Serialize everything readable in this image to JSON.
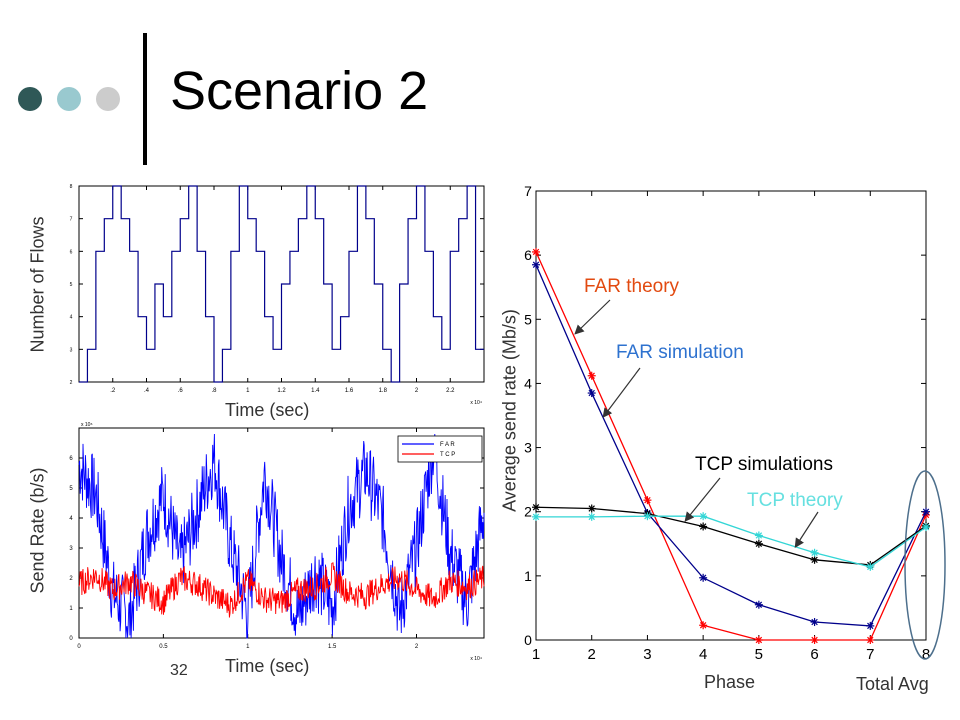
{
  "slide": {
    "title": "Scenario 2",
    "number": "32",
    "bullet_colors": [
      "#2f5857",
      "#99c9cf",
      "#cccccc"
    ]
  },
  "chart_data": [
    {
      "type": "line",
      "name": "flows",
      "xlabel": "Time (sec)",
      "ylabel": "Number of Flows",
      "x_multiplier": "x 10⁴",
      "xlim": [
        0,
        2.4
      ],
      "ylim": [
        2,
        8
      ],
      "xticks": [
        ".2",
        ".4",
        ".6",
        ".8",
        "1",
        "1.2",
        "1.4",
        "1.6",
        "1.8",
        "2",
        "2.2"
      ],
      "yticks": [
        "2",
        "3",
        "4",
        "5",
        "6",
        "7",
        "8"
      ],
      "step": true,
      "color": "#00008b",
      "series": [
        {
          "x": [
            0,
            0.05,
            0.1,
            0.15,
            0.2,
            0.25,
            0.3,
            0.35,
            0.4,
            0.45,
            0.5,
            0.55,
            0.6,
            0.65,
            0.7,
            0.75,
            0.8,
            0.85,
            0.9,
            0.95,
            1.0,
            1.05,
            1.1,
            1.15,
            1.2,
            1.25,
            1.3,
            1.35,
            1.4,
            1.45,
            1.5,
            1.55,
            1.6,
            1.65,
            1.7,
            1.75,
            1.8,
            1.85,
            1.9,
            1.95,
            2.0,
            2.05,
            2.1,
            2.15,
            2.2,
            2.25,
            2.3,
            2.35
          ],
          "y": [
            2,
            3,
            6,
            7,
            8,
            7,
            6,
            4,
            3,
            5,
            4,
            6,
            7,
            8,
            6,
            4,
            2,
            3,
            6,
            8,
            7,
            6,
            4,
            3,
            5,
            6,
            7,
            8,
            7,
            5,
            3,
            4,
            6,
            8,
            7,
            5,
            3,
            2,
            5,
            7,
            8,
            6,
            4,
            3,
            6,
            7,
            8,
            3
          ]
        }
      ]
    },
    {
      "type": "line",
      "name": "send-rate",
      "xlabel": "Time (sec)",
      "ylabel": "Send Rate (b/s)",
      "x_multiplier": "x 10⁴",
      "y_multiplier": "x 10⁶",
      "xlim": [
        0,
        2.4
      ],
      "ylim": [
        0,
        7
      ],
      "xticks": [
        "0",
        "0.5",
        "1",
        "1.5",
        "2"
      ],
      "yticks": [
        "0",
        "1",
        "2",
        "3",
        "4",
        "5",
        "6"
      ],
      "legend_position": "top-right",
      "legend": [
        {
          "name": "F A R",
          "color": "#0000ff"
        },
        {
          "name": "T C P",
          "color": "#ff0000"
        }
      ],
      "series": [
        {
          "name": "F A R",
          "color": "#0000ff",
          "x": [
            0,
            0.1,
            0.2,
            0.3,
            0.4,
            0.5,
            0.6,
            0.7,
            0.8,
            0.9,
            1.0,
            1.1,
            1.2,
            1.3,
            1.4,
            1.5,
            1.6,
            1.7,
            1.8,
            1.9,
            2.0,
            2.1,
            2.2,
            2.3,
            2.4
          ],
          "y": [
            5.8,
            4.8,
            1.5,
            0.6,
            3.4,
            4.8,
            2.5,
            4.2,
            6.0,
            3.0,
            0.8,
            5.5,
            2.6,
            0.7,
            2.2,
            1.0,
            4.4,
            5.6,
            4.0,
            0.8,
            3.0,
            6.4,
            2.8,
            1.2,
            4.2
          ]
        },
        {
          "name": "T C P",
          "color": "#ff0000",
          "x": [
            0,
            0.1,
            0.2,
            0.3,
            0.4,
            0.5,
            0.6,
            0.7,
            0.8,
            0.9,
            1.0,
            1.1,
            1.2,
            1.3,
            1.4,
            1.5,
            1.6,
            1.7,
            1.8,
            1.9,
            2.0,
            2.1,
            2.2,
            2.3,
            2.4
          ],
          "y": [
            1.8,
            2.1,
            1.6,
            1.9,
            1.5,
            1.2,
            2.0,
            1.8,
            1.4,
            1.1,
            1.9,
            1.3,
            1.2,
            1.6,
            1.7,
            2.1,
            1.5,
            1.4,
            1.8,
            2.0,
            1.6,
            1.3,
            1.9,
            1.7,
            2.0
          ]
        }
      ]
    },
    {
      "type": "line",
      "name": "avg-send-rate",
      "xlabel": "Phase",
      "ylabel": "Average send rate (Mb/s)",
      "extra_label": "Total Avg",
      "xlim": [
        1,
        8
      ],
      "ylim": [
        0,
        7
      ],
      "xticks": [
        "1",
        "2",
        "3",
        "4",
        "5",
        "6",
        "7",
        "8"
      ],
      "yticks": [
        "0",
        "1",
        "2",
        "3",
        "4",
        "5",
        "6",
        "7"
      ],
      "series": [
        {
          "name": "FAR theory",
          "color": "#ff0000",
          "x": [
            1,
            2,
            3,
            4,
            5,
            6,
            7,
            8
          ],
          "y": [
            6.05,
            4.12,
            2.18,
            0.23,
            0.0,
            0.0,
            0.0,
            1.95
          ]
        },
        {
          "name": "FAR simulation",
          "color": "#00008b",
          "x": [
            1,
            2,
            3,
            4,
            5,
            6,
            7,
            8
          ],
          "y": [
            5.85,
            3.85,
            1.98,
            0.97,
            0.55,
            0.28,
            0.22,
            2.0
          ]
        },
        {
          "name": "TCP simulations",
          "color": "#000000",
          "x": [
            1,
            2,
            3,
            4,
            5,
            6,
            7,
            8
          ],
          "y": [
            2.07,
            2.05,
            1.97,
            1.77,
            1.5,
            1.25,
            1.17,
            1.78
          ]
        },
        {
          "name": "TCP theory",
          "color": "#33d6d6",
          "x": [
            1,
            2,
            3,
            4,
            5,
            6,
            7,
            8
          ],
          "y": [
            1.92,
            1.92,
            1.93,
            1.93,
            1.63,
            1.36,
            1.14,
            1.76
          ]
        }
      ],
      "annotations": [
        {
          "text": "FAR theory",
          "color": "#e24a10"
        },
        {
          "text": "FAR simulation",
          "color": "#2e72cf"
        },
        {
          "text": "TCP simulations",
          "color": "#000000"
        },
        {
          "text": "TCP theory",
          "color": "#66e0e0"
        }
      ]
    }
  ]
}
